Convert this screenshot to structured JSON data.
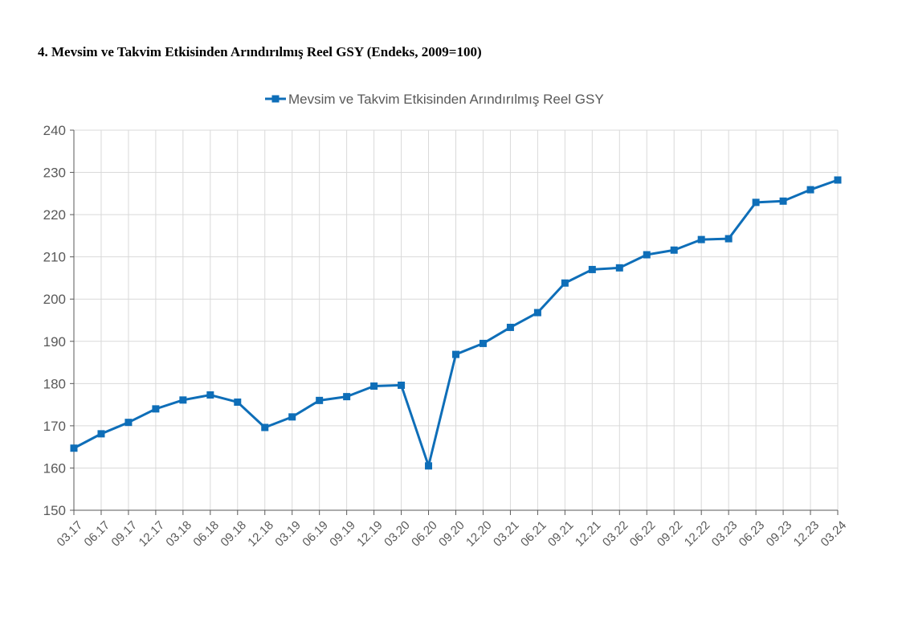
{
  "page": {
    "title": "4. Mevsim ve Takvim Etkisinden Arındırılmış Reel GSY (Endeks, 2009=100)"
  },
  "chart_data": {
    "type": "line",
    "title": "",
    "xlabel": "",
    "ylabel": "",
    "ylim": [
      150,
      240
    ],
    "yticks": [
      150,
      160,
      170,
      180,
      190,
      200,
      210,
      220,
      230,
      240
    ],
    "grid": true,
    "legend_position": "top-center",
    "categories": [
      "03.17",
      "06.17",
      "09.17",
      "12.17",
      "03.18",
      "06.18",
      "09.18",
      "12.18",
      "03.19",
      "06.19",
      "09.19",
      "12.19",
      "03.20",
      "06.20",
      "09.20",
      "12.20",
      "03.21",
      "06.21",
      "09.21",
      "12.21",
      "03.22",
      "06.22",
      "09.22",
      "12.22",
      "03.23",
      "06.23",
      "09.23",
      "12.23",
      "03.24"
    ],
    "series": [
      {
        "name": "Mevsim ve Takvim Etkisinden Arındırılmış Reel GSY",
        "color": "#0E6EB8",
        "marker": "square",
        "values": [
          164.7,
          168.1,
          170.8,
          174.0,
          176.1,
          177.3,
          175.6,
          169.6,
          172.1,
          176.0,
          176.9,
          179.4,
          179.6,
          160.5,
          186.9,
          189.5,
          193.3,
          196.8,
          203.8,
          207.0,
          207.4,
          210.5,
          211.6,
          214.1,
          214.3,
          222.9,
          223.2,
          225.9,
          228.2
        ]
      }
    ]
  }
}
